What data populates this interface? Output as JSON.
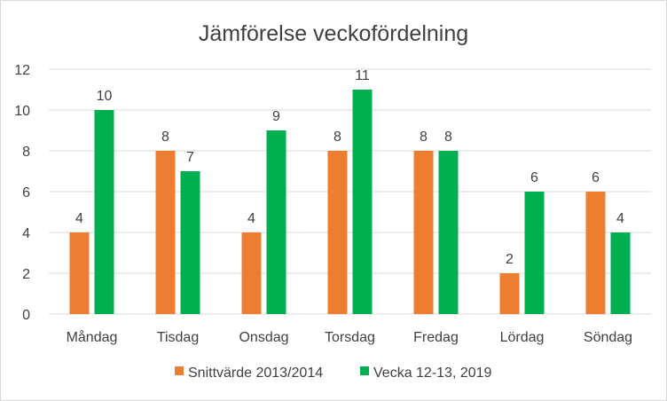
{
  "chart_data": {
    "type": "bar",
    "title": "Jämförelse veckofördelning",
    "xlabel": "",
    "ylabel": "",
    "ylim": [
      0,
      12
    ],
    "yticks": [
      0,
      2,
      4,
      6,
      8,
      10,
      12
    ],
    "grid": true,
    "legend_position": "bottom",
    "categories": [
      "Måndag",
      "Tisdag",
      "Onsdag",
      "Torsdag",
      "Fredag",
      "Lördag",
      "Söndag"
    ],
    "series": [
      {
        "name": "Snittvärde 2013/2014",
        "color": "#ed7d31",
        "values": [
          4,
          8,
          4,
          8,
          8,
          2,
          6
        ]
      },
      {
        "name": "Vecka 12-13, 2019",
        "color": "#00b050",
        "values": [
          10,
          7,
          9,
          11,
          8,
          6,
          4
        ]
      }
    ]
  }
}
